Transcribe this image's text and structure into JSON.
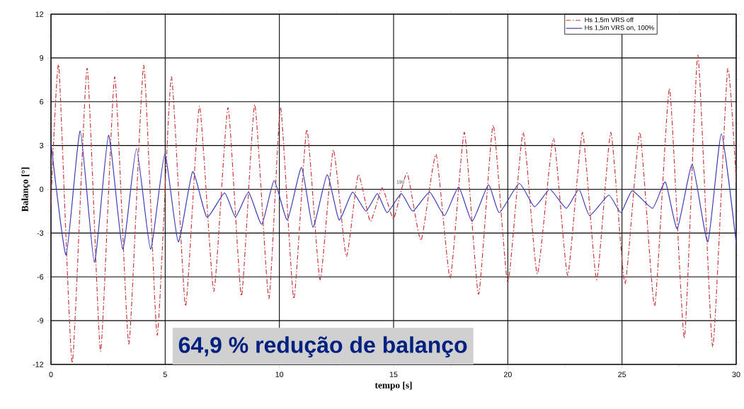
{
  "chart_data": {
    "type": "line",
    "xlabel": "tempo [s]",
    "ylabel": "Balanço [°]",
    "xlim": [
      0,
      30
    ],
    "xticks": [
      0,
      5,
      10,
      15,
      20,
      25,
      30
    ],
    "ylim": [
      -12,
      12
    ],
    "yticks": [
      -12,
      -9,
      -6,
      -3,
      0,
      3,
      6,
      9,
      12
    ],
    "grid": true,
    "legend": "top right",
    "annotations": [
      "64,9 % redução de balanço",
      "190"
    ],
    "series": [
      {
        "name": "Hs 1,5m VRS off",
        "color": "#c8383c",
        "line_style": "dashdot",
        "x": [
          0,
          0.34,
          0.93,
          1.58,
          2.17,
          2.79,
          3.41,
          4.06,
          4.65,
          5.27,
          5.89,
          6.5,
          7.13,
          7.75,
          8.34,
          8.92,
          9.54,
          10.05,
          10.63,
          11.2,
          11.78,
          12.36,
          12.93,
          13.45,
          13.98,
          14.5,
          15.0,
          15.59,
          16.2,
          16.86,
          17.48,
          18.1,
          18.72,
          19.36,
          20.0,
          20.67,
          21.29,
          22.0,
          22.62,
          23.27,
          23.89,
          24.51,
          25.13,
          25.78,
          26.43,
          27.08,
          27.73,
          28.32,
          28.97,
          29.62,
          30
        ],
        "values": [
          -1.0,
          8.5,
          -11.9,
          8.3,
          -11.1,
          7.7,
          -10.6,
          8.5,
          -10.0,
          7.7,
          -8.0,
          5.7,
          -7.0,
          5.6,
          -7.3,
          5.8,
          -7.5,
          5.6,
          -7.5,
          4.1,
          -6.2,
          2.7,
          -4.6,
          1.0,
          -2.2,
          0.1,
          -2.0,
          1.1,
          -3.5,
          2.4,
          -6.1,
          3.9,
          -7.2,
          4.4,
          -6.4,
          3.9,
          -5.8,
          3.5,
          -5.9,
          3.9,
          -6.2,
          3.9,
          -6.5,
          3.9,
          -8.0,
          6.9,
          -10.2,
          9.2,
          -10.8,
          8.2,
          0.5
        ]
      },
      {
        "name": "Hs 1,5m VRS on, 100%",
        "color": "#3c3cb4",
        "line_style": "solid",
        "x": [
          0,
          0.66,
          1.28,
          1.9,
          2.52,
          3.14,
          3.74,
          4.36,
          4.98,
          5.57,
          6.2,
          6.82,
          7.6,
          8.08,
          8.65,
          9.23,
          9.77,
          10.35,
          10.97,
          11.47,
          12.09,
          12.61,
          13.2,
          13.79,
          14.29,
          14.72,
          15.34,
          15.84,
          16.58,
          17.23,
          17.85,
          18.44,
          19.15,
          19.63,
          20.5,
          21.17,
          21.84,
          22.56,
          23.12,
          23.58,
          24.42,
          24.95,
          25.45,
          26.34,
          26.9,
          27.42,
          28.08,
          28.76,
          29.35,
          30
        ],
        "values": [
          3.2,
          -4.5,
          4.0,
          -5.0,
          3.7,
          -4.1,
          2.8,
          -4.1,
          2.4,
          -3.6,
          1.2,
          -1.9,
          -0.25,
          -1.9,
          -0.2,
          -2.4,
          0.6,
          -2.1,
          1.5,
          -2.6,
          1.0,
          -2.1,
          -0.2,
          -1.5,
          -0.3,
          -1.6,
          -0.3,
          -1.5,
          -0.2,
          -1.8,
          0.15,
          -2.2,
          0.3,
          -1.6,
          0.4,
          -1.2,
          0,
          -1.3,
          0,
          -1.8,
          -0.4,
          -1.6,
          -0.1,
          -1.3,
          0.5,
          -2.7,
          1.7,
          -3.6,
          3.8,
          -3.7
        ]
      }
    ]
  }
}
